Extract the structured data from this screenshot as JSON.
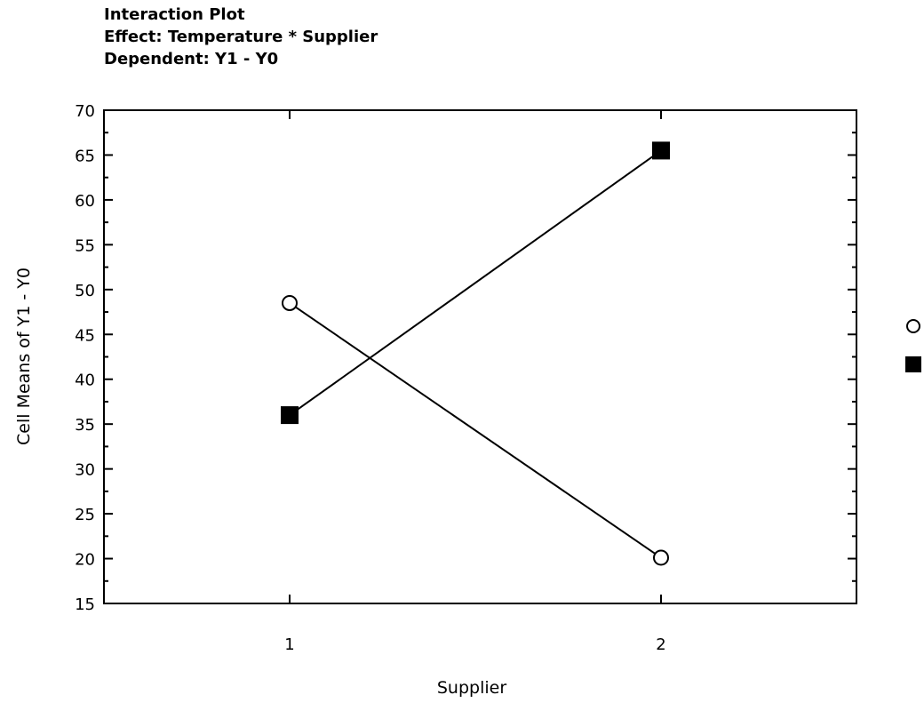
{
  "title_lines": [
    "Interaction Plot",
    "Effect: Temperature * Supplier",
    "Dependent: Y1 - Y0"
  ],
  "chart_data": {
    "type": "line",
    "xlabel": "Supplier",
    "ylabel": "Cell Means of Y1 - Y0",
    "categories": [
      "1",
      "2"
    ],
    "ylim": [
      15,
      70
    ],
    "yticks": [
      15,
      20,
      25,
      30,
      35,
      40,
      45,
      50,
      55,
      60,
      65,
      70
    ],
    "grid": false,
    "legend_position": "right",
    "series": [
      {
        "marker": "open-circle",
        "color": "#000000",
        "values": [
          48.5,
          20.1
        ]
      },
      {
        "marker": "filled-square",
        "color": "#000000",
        "values": [
          36,
          65.5
        ]
      }
    ]
  }
}
